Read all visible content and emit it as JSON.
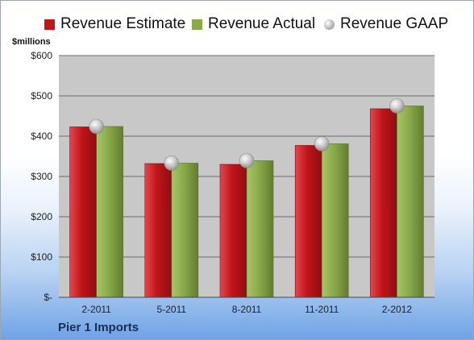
{
  "chart_data": {
    "type": "bar",
    "y_unit_label": "$millions",
    "categories": [
      "2-2011",
      "5-2011",
      "8-2011",
      "11-2011",
      "2-2012"
    ],
    "series": [
      {
        "name": "Revenue Estimate",
        "kind": "bar",
        "color": "#c0151a",
        "values": [
          423,
          332,
          330,
          377,
          468
        ]
      },
      {
        "name": "Revenue Actual",
        "kind": "bar",
        "color": "#8aaa4a",
        "values": [
          424,
          333,
          339,
          381,
          475
        ]
      },
      {
        "name": "Revenue GAAP",
        "kind": "marker",
        "color": "#b8b8b8",
        "values": [
          424,
          333,
          339,
          381,
          475
        ]
      }
    ],
    "yticks": [
      {
        "value": 0,
        "label": "$-"
      },
      {
        "value": 100,
        "label": "$100"
      },
      {
        "value": 200,
        "label": "$200"
      },
      {
        "value": 300,
        "label": "$300"
      },
      {
        "value": 400,
        "label": "$400"
      },
      {
        "value": 500,
        "label": "$500"
      },
      {
        "value": 600,
        "label": "$600"
      }
    ],
    "ylim": [
      0,
      600
    ],
    "grid": true,
    "legend_position": "top",
    "plot_background": "#c8c8c8"
  },
  "footer": {
    "company": "Pier 1 Imports"
  }
}
